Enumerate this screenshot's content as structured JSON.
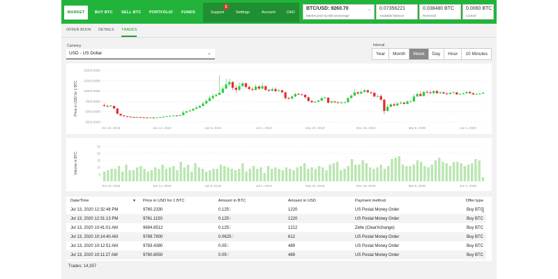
{
  "nav": {
    "items": [
      "MARKET",
      "BUY BTC",
      "SELL BTC",
      "PORTFOLIO",
      "FUNDS"
    ],
    "secondary": [
      "Support",
      "Settings",
      "Account",
      "DAO"
    ],
    "support_badge": "1"
  },
  "ticker": {
    "pair": "BTC/USD: 9260.70",
    "caption": "Market price by Bitcoinaverage"
  },
  "balances": [
    {
      "value": "0.07356221",
      "label": "Available balance"
    },
    {
      "value": "0.038480 BTC",
      "label": "Reserved"
    },
    {
      "value": "0.0060 BTC",
      "label": "Locked"
    }
  ],
  "tabs": [
    "OFFER BOOK",
    "DETAILS",
    "TRADES"
  ],
  "currency": {
    "label": "Currency",
    "value": "USD  -  US Dollar"
  },
  "interval": {
    "label": "Interval",
    "options": [
      "Year",
      "Month",
      "Week",
      "Day",
      "Hour",
      "10 Minutes"
    ],
    "selected": "Week"
  },
  "price_chart": {
    "ylabel": "Price in USD for 1 BTC",
    "yticks": [
      "15000.0000",
      "12500.0000",
      "10000.0000",
      "7500.0000",
      "5000.0000",
      "2500.0000"
    ],
    "xticks": [
      "Oct 22, 2018",
      "Jan 14, 2019",
      "Apr 8, 2019",
      "Jul 1, 2019",
      "Sep 23, 2019",
      "Dec 16, 2019",
      "Mar 9, 2020",
      "Jun 1, 2020"
    ]
  },
  "volume_chart": {
    "ylabel": "Volume in BTC",
    "yticks": [
      "25",
      "20",
      "15",
      "10",
      "5"
    ],
    "xticks": [
      "Oct 22, 2018",
      "Jan 14, 2019",
      "Apr 8, 2019",
      "Jul 1, 2019",
      "Sep 23, 2019",
      "Dec 16, 2019",
      "Mar 9, 2020",
      "Jun 1, 2020"
    ]
  },
  "chart_data": [
    {
      "type": "candlestick",
      "ylabel": "Price in USD for 1 BTC",
      "ylim": [
        2500,
        15000
      ],
      "x_range": [
        "Oct 22, 2018",
        "Jul 13, 2020"
      ],
      "close": [
        6400,
        6300,
        6500,
        5800,
        4500,
        4100,
        3900,
        3800,
        3700,
        3600,
        3700,
        3650,
        3600,
        3500,
        3600,
        3500,
        3600,
        3700,
        3800,
        3900,
        4000,
        4100,
        4000,
        4200,
        4800,
        5100,
        5300,
        5700,
        6000,
        6400,
        7000,
        7600,
        8300,
        8800,
        9100,
        9600,
        10600,
        11600,
        12200,
        10800,
        10300,
        11200,
        11900,
        11000,
        10500,
        10300,
        11100,
        10600,
        11200,
        10300,
        10100,
        10500,
        10000,
        10200,
        9700,
        8300,
        8200,
        8700,
        9300,
        9200,
        9100,
        8500,
        7600,
        7300,
        7400,
        7700,
        8300,
        8400,
        7200,
        7500,
        7300,
        7200,
        7200,
        7300,
        8300,
        8900,
        9700,
        9400,
        9800,
        10200,
        9700,
        9600,
        8700,
        8800,
        7900,
        5200,
        6200,
        6800,
        6500,
        7000,
        7200,
        6900,
        7500,
        7500,
        8700,
        9300,
        8800,
        9800,
        9700,
        9500,
        10000,
        9500,
        9700,
        9400,
        9300,
        9600,
        9700,
        9200,
        9300,
        9500,
        9800,
        9500,
        9200,
        9300,
        9400,
        9600
      ],
      "open": [
        6600,
        6400,
        6300,
        6400,
        5800,
        4500,
        4100,
        3900,
        3800,
        3700,
        3600,
        3700,
        3650,
        3600,
        3500,
        3600,
        3500,
        3600,
        3700,
        3800,
        3900,
        4000,
        4100,
        4000,
        4200,
        4800,
        5100,
        5300,
        5700,
        6000,
        6400,
        7000,
        7600,
        8300,
        8800,
        9100,
        9600,
        10600,
        11600,
        12200,
        10800,
        10300,
        11200,
        11900,
        11000,
        10500,
        10300,
        11100,
        10600,
        11200,
        10300,
        10100,
        10500,
        10000,
        10200,
        9700,
        8300,
        8200,
        8700,
        9300,
        9200,
        9100,
        8500,
        7600,
        7300,
        7400,
        7700,
        8300,
        8400,
        7200,
        7500,
        7300,
        7200,
        7200,
        7300,
        8300,
        8900,
        9700,
        9400,
        9800,
        10200,
        9700,
        9600,
        8700,
        8800,
        7900,
        5200,
        6200,
        6800,
        6500,
        7000,
        7200,
        6900,
        7500,
        7500,
        8700,
        9300,
        8800,
        9800,
        9700,
        9500,
        10000,
        9500,
        9700,
        9400,
        9300,
        9600,
        9700,
        9200,
        9300,
        9500,
        9800,
        9500,
        9200,
        9300,
        9400
      ],
      "high": [
        7000,
        6700,
        6600,
        6500,
        5900,
        4600,
        4200,
        4000,
        3900,
        3800,
        3800,
        3750,
        3700,
        3650,
        3700,
        3650,
        3650,
        3800,
        3900,
        4000,
        4100,
        4200,
        4200,
        4300,
        5300,
        5300,
        5500,
        5900,
        6400,
        6700,
        7500,
        8100,
        8900,
        9400,
        9400,
        13800,
        11300,
        13000,
        13000,
        12400,
        11400,
        12100,
        12300,
        12000,
        11300,
        10900,
        11600,
        11400,
        12100,
        11300,
        10500,
        10900,
        10900,
        10500,
        10300,
        9900,
        8600,
        9000,
        9600,
        9600,
        9400,
        9200,
        8700,
        7900,
        7700,
        7900,
        8600,
        8800,
        8500,
        7700,
        7600,
        7500,
        7500,
        7500,
        8600,
        9200,
        10500,
        9900,
        10300,
        10500,
        10400,
        10000,
        9800,
        9100,
        9200,
        8200,
        6800,
        7000,
        7200,
        7300,
        7500,
        7400,
        7800,
        7800,
        9300,
        9600,
        9900,
        10000,
        10200,
        10100,
        10200,
        10300,
        9900,
        9900,
        9800,
        9700,
        9900,
        9800,
        9500,
        9600,
        9900,
        10000,
        9700,
        9500,
        9600,
        9800
      ],
      "low": [
        6200,
        6100,
        6200,
        5700,
        4400,
        3900,
        3800,
        3700,
        3600,
        3500,
        3500,
        3550,
        3500,
        3400,
        3450,
        3400,
        3450,
        3550,
        3650,
        3750,
        3850,
        3950,
        3900,
        3950,
        4100,
        4700,
        5000,
        5200,
        5600,
        5900,
        6300,
        6900,
        7500,
        7900,
        8600,
        9000,
        9400,
        10500,
        11000,
        10200,
        9600,
        10000,
        11000,
        10600,
        10200,
        10000,
        10100,
        10300,
        10500,
        10100,
        9800,
        10000,
        9800,
        9900,
        9500,
        8000,
        7900,
        8000,
        8600,
        9000,
        8900,
        8300,
        7400,
        7100,
        7200,
        7300,
        7600,
        8200,
        7000,
        7100,
        7100,
        7000,
        7000,
        7100,
        7200,
        8200,
        8800,
        9200,
        9300,
        9600,
        9600,
        9300,
        8500,
        8500,
        7700,
        4400,
        5000,
        6100,
        6300,
        6400,
        6800,
        6700,
        6800,
        7300,
        7400,
        8600,
        8700,
        8700,
        9400,
        9300,
        9300,
        9300,
        9300,
        9300,
        9100,
        9200,
        9400,
        9100,
        9100,
        9200,
        9300,
        9300,
        9100,
        9100,
        9200,
        9300
      ]
    },
    {
      "type": "bar",
      "ylabel": "Volume in BTC",
      "ylim": [
        0,
        25
      ],
      "x_range": [
        "Oct 22, 2018",
        "Jul 13, 2020"
      ],
      "values": [
        7,
        8,
        9,
        9,
        11,
        7,
        12,
        8,
        8,
        10,
        11,
        9,
        7,
        8,
        10,
        9,
        12,
        9,
        10,
        11,
        8,
        14,
        10,
        12,
        7,
        13,
        10,
        9,
        7,
        8,
        9,
        9,
        12,
        11,
        10,
        9,
        8,
        9,
        13,
        7,
        9,
        11,
        9,
        10,
        6,
        11,
        9,
        10,
        9,
        8,
        10,
        9,
        8,
        10,
        11,
        13,
        9,
        10,
        9,
        11,
        10,
        8,
        12,
        13,
        14,
        8,
        9,
        11,
        16,
        12,
        12,
        15,
        13,
        10,
        9,
        10,
        12,
        9,
        11,
        16,
        17,
        18,
        12,
        11,
        11,
        12,
        15,
        14,
        11,
        10,
        12,
        15,
        17,
        14,
        13,
        11,
        14,
        14,
        13,
        11,
        12,
        13,
        16,
        15,
        3
      ]
    }
  ],
  "table": {
    "headers": [
      "Date/Time",
      "Price in USD for 1 BTC",
      "Amount in BTC",
      "Amount in USD",
      "Payment method",
      "Offer type"
    ],
    "rows": [
      [
        "Jul 13, 2020 12:32:48 PM",
        "9760.2330",
        "0.125",
        "1220",
        "US Postal Money Order",
        "Buy BTC"
      ],
      [
        "Jul 13, 2020 12:31:13 PM",
        "9761.1150",
        "0.125",
        "1220",
        "US Postal Money Order",
        "Buy BTC"
      ],
      [
        "Jul 13, 2020 10:41:01 AM",
        "9694.6512",
        "0.125",
        "1212",
        "Zelle (ClearXchange)",
        "Buy BTC"
      ],
      [
        "Jul 13, 2020 10:14:40 AM",
        "9789.7800",
        "0.0625",
        "612",
        "US Postal Money Order",
        "Buy BTC"
      ],
      [
        "Jul 13, 2020 10:12:51 AM",
        "9783.4380",
        "0.05",
        "489",
        "US Postal Money Order",
        "Buy BTC"
      ],
      [
        "Jul 13, 2020 10:11:27 AM",
        "9780.8550",
        "0.05",
        "489",
        "US Postal Money Order",
        "Buy BTC"
      ]
    ],
    "footer": "Trades: 14,357"
  },
  "colors": {
    "brand": "#22b43a",
    "up": "#2ecc40",
    "down": "#e0312f",
    "volume": "#b9e6b0"
  }
}
